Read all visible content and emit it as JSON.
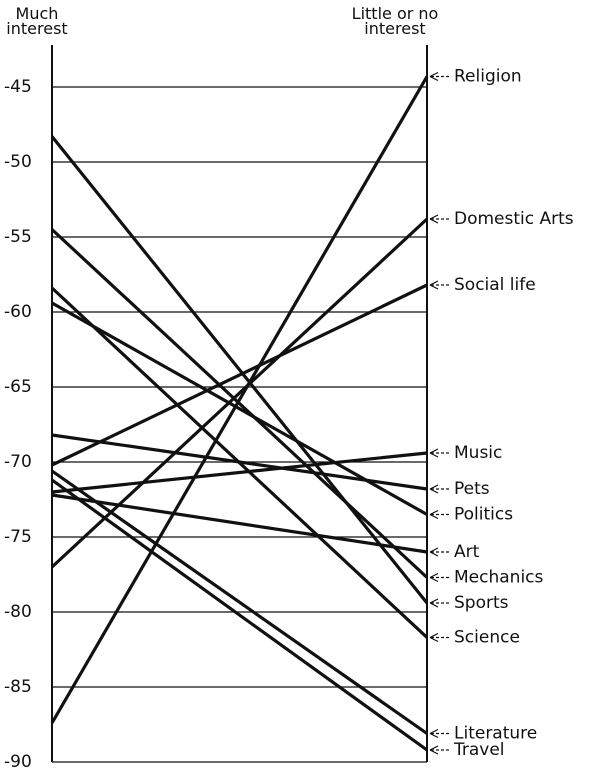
{
  "chart_data": {
    "type": "slope",
    "categories": [
      "Much interest",
      "Little or no interest"
    ],
    "ylim": [
      -90,
      -42.2
    ],
    "yticks": [
      -45,
      -50,
      -55,
      -60,
      -65,
      -70,
      -75,
      -80,
      -85,
      -90
    ],
    "grid": true,
    "color": "#111111",
    "series": [
      {
        "name": "Religion",
        "values": [
          -87.4,
          -44.3
        ]
      },
      {
        "name": "Domestic Arts",
        "values": [
          -77.0,
          -53.8
        ]
      },
      {
        "name": "Social life",
        "values": [
          -70.2,
          -58.2
        ]
      },
      {
        "name": "Music",
        "values": [
          -72.0,
          -69.4
        ]
      },
      {
        "name": "Pets",
        "values": [
          -68.2,
          -71.8
        ]
      },
      {
        "name": "Politics",
        "values": [
          -59.4,
          -73.5
        ]
      },
      {
        "name": "Art",
        "values": [
          -72.2,
          -76.0
        ]
      },
      {
        "name": "Mechanics",
        "values": [
          -54.5,
          -77.7
        ]
      },
      {
        "name": "Sports",
        "values": [
          -48.3,
          -79.4
        ]
      },
      {
        "name": "Science",
        "values": [
          -58.4,
          -81.7
        ]
      },
      {
        "name": "Literature",
        "values": [
          -70.6,
          -88.1
        ]
      },
      {
        "name": "Travel",
        "values": [
          -71.2,
          -89.2
        ]
      }
    ]
  }
}
